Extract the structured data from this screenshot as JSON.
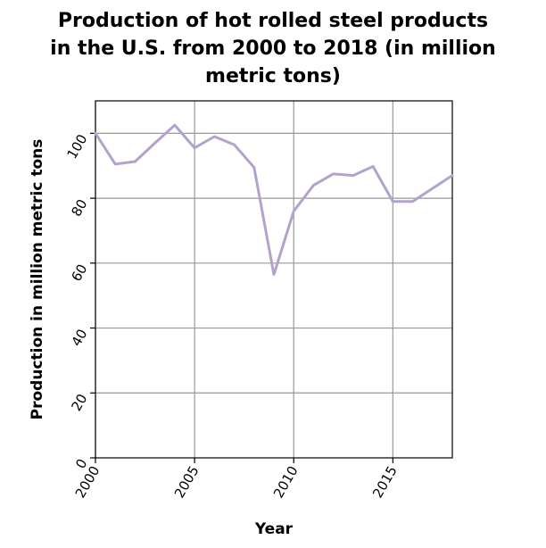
{
  "chart_data": {
    "type": "line",
    "title_lines": [
      "Production of hot rolled steel products",
      "in the U.S. from 2000 to 2018 (in million",
      "metric tons)"
    ],
    "xlabel": "Year",
    "ylabel": "Production in million metric tons",
    "xlim": [
      2000,
      2018
    ],
    "ylim": [
      0,
      110
    ],
    "x_ticks": [
      2000,
      2005,
      2010,
      2015
    ],
    "y_ticks": [
      0,
      20,
      40,
      60,
      80,
      100
    ],
    "grid": true,
    "line_color": "#b3a3cc",
    "series": [
      {
        "x": [
          2000,
          2001,
          2002,
          2003,
          2004,
          2005,
          2006,
          2007,
          2008,
          2009,
          2010,
          2011,
          2012,
          2013,
          2014,
          2015,
          2016,
          2017,
          2018
        ],
        "values": [
          100,
          90.5,
          91.3,
          97,
          102.5,
          95.5,
          99,
          96.5,
          89.5,
          56.5,
          76,
          84,
          87.5,
          87,
          89.8,
          79,
          79,
          83,
          87
        ]
      }
    ]
  }
}
